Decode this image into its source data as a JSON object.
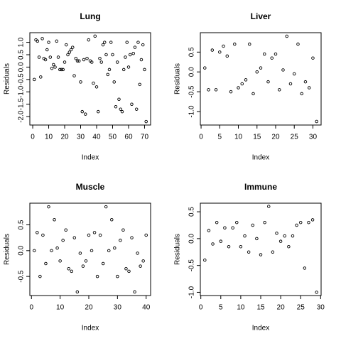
{
  "chart_data": [
    {
      "type": "scatter",
      "title": "Lung",
      "xlabel": "Index",
      "ylabel": "Residuals",
      "x": [
        1,
        2,
        3,
        4,
        5,
        6,
        7,
        8,
        9,
        10,
        11,
        12,
        13,
        14,
        15,
        16,
        17,
        18,
        19,
        20,
        21,
        22,
        23,
        24,
        25,
        26,
        27,
        28,
        29,
        30,
        31,
        32,
        33,
        34,
        35,
        36,
        37,
        38,
        39,
        40,
        41,
        42,
        43,
        44,
        45,
        46,
        47,
        48,
        49,
        50,
        51,
        52,
        53,
        54,
        55,
        56,
        57,
        58,
        59,
        60,
        61,
        62,
        63,
        64,
        65,
        66,
        67,
        68,
        69,
        70,
        71
      ],
      "values": [
        -0.5,
        1.1,
        1.05,
        0.4,
        -0.4,
        1.15,
        0.35,
        0.3,
        0.7,
        1.0,
        0.4,
        -0.05,
        0.1,
        0.0,
        1.05,
        0.4,
        -0.1,
        -0.1,
        -0.1,
        0.2,
        0.9,
        0.5,
        0.6,
        0.7,
        0.8,
        -0.35,
        0.35,
        0.25,
        0.25,
        -0.6,
        -1.8,
        0.3,
        -1.9,
        0.35,
        1.1,
        0.25,
        0.2,
        -0.65,
        1.25,
        -0.8,
        -1.8,
        0.35,
        0.2,
        0.9,
        1.0,
        0.5,
        -0.3,
        -0.1,
        1.0,
        0.5,
        -0.6,
        -1.6,
        0.2,
        -1.3,
        -1.7,
        -1.8,
        -0.1,
        0.4,
        1.0,
        0.0,
        0.5,
        -1.5,
        0.55,
        0.8,
        -1.7,
        1.0,
        -0.7,
        0.3,
        0.9,
        -0.1,
        -2.2
      ],
      "xlim": [
        -1.8,
        73.8
      ],
      "xticks": [
        0,
        10,
        20,
        30,
        40,
        50,
        60,
        70
      ],
      "ylim": [
        -2.34,
        1.39
      ],
      "yticks": [
        {
          "value": -2,
          "label": "-2.0"
        },
        -1.5,
        {
          "value": -1,
          "label": "-1.0"
        },
        -0.5,
        {
          "value": 0,
          "label": "0.0"
        },
        0.5,
        {
          "value": 1,
          "label": "1.0"
        }
      ]
    },
    {
      "type": "scatter",
      "title": "Liver",
      "xlabel": "Index",
      "ylabel": "Residuals",
      "x": [
        1,
        2,
        3,
        4,
        5,
        6,
        7,
        8,
        9,
        10,
        11,
        12,
        13,
        14,
        15,
        16,
        17,
        18,
        19,
        20,
        21,
        22,
        23,
        24,
        25,
        26,
        27,
        28,
        29,
        30,
        31
      ],
      "values": [
        0.1,
        -0.45,
        0.55,
        -0.45,
        0.5,
        0.65,
        0.4,
        -0.5,
        0.7,
        -0.4,
        -0.3,
        -0.2,
        0.7,
        -0.55,
        0.0,
        0.1,
        0.45,
        -0.25,
        0.35,
        0.45,
        -0.45,
        0.05,
        0.9,
        -0.3,
        -0.05,
        0.7,
        -0.55,
        -0.25,
        -0.4,
        0.35,
        -1.25
      ],
      "xlim": [
        -0.2,
        32.2
      ],
      "xticks": [
        0,
        5,
        10,
        15,
        20,
        25,
        30
      ],
      "ylim": [
        -1.34,
        0.99
      ],
      "yticks": [
        {
          "value": -1,
          "label": "-1.0"
        },
        -0.5,
        {
          "value": 0,
          "label": "0.0"
        },
        0.5
      ]
    },
    {
      "type": "scatter",
      "title": "Muscle",
      "xlabel": "Index",
      "ylabel": "Residuals",
      "x": [
        1,
        2,
        3,
        4,
        5,
        6,
        7,
        8,
        9,
        10,
        11,
        12,
        13,
        14,
        15,
        16,
        17,
        18,
        19,
        20,
        21,
        22,
        23,
        24,
        25,
        26,
        27,
        28,
        29,
        30,
        31,
        32,
        33,
        34,
        35,
        36,
        37,
        38,
        39,
        40
      ],
      "values": [
        0.0,
        0.35,
        -0.5,
        0.3,
        -0.25,
        0.85,
        0.0,
        0.6,
        0.05,
        -0.2,
        0.2,
        0.4,
        -0.35,
        -0.4,
        0.25,
        -0.8,
        -0.05,
        -0.3,
        -0.2,
        0.3,
        0.0,
        0.35,
        -0.5,
        0.3,
        -0.25,
        0.85,
        0.0,
        0.6,
        0.05,
        -0.5,
        0.2,
        0.4,
        -0.35,
        -0.4,
        0.25,
        -0.8,
        -0.05,
        -0.3,
        -0.2,
        0.3
      ],
      "xlim": [
        -0.56,
        41.56
      ],
      "xticks": [
        0,
        10,
        20,
        30,
        40
      ],
      "ylim": [
        -0.87,
        0.92
      ],
      "yticks": [
        -0.5,
        {
          "value": 0,
          "label": "0.0"
        },
        0.5
      ]
    },
    {
      "type": "scatter",
      "title": "Immune",
      "xlabel": "Index",
      "ylabel": "Residuals",
      "x": [
        1,
        2,
        3,
        4,
        5,
        6,
        7,
        8,
        9,
        10,
        11,
        12,
        13,
        14,
        15,
        16,
        17,
        18,
        19,
        20,
        21,
        22,
        23,
        24,
        25,
        26,
        27,
        28,
        29
      ],
      "values": [
        -0.4,
        0.15,
        -0.1,
        0.3,
        -0.05,
        0.2,
        -0.15,
        0.2,
        0.3,
        -0.15,
        0.05,
        -0.25,
        0.25,
        0.0,
        -0.3,
        0.3,
        0.6,
        -0.25,
        0.1,
        -0.05,
        0.05,
        -0.15,
        0.05,
        0.25,
        0.3,
        -0.55,
        0.3,
        0.35,
        -1.0
      ],
      "xlim": [
        -0.12,
        30.12
      ],
      "xticks": [
        0,
        5,
        10,
        15,
        20,
        25,
        30
      ],
      "ylim": [
        -1.06,
        0.66
      ],
      "yticks": [
        {
          "value": -1,
          "label": "-1.0"
        },
        -0.5,
        {
          "value": 0,
          "label": "0.0"
        },
        0.5
      ]
    }
  ]
}
